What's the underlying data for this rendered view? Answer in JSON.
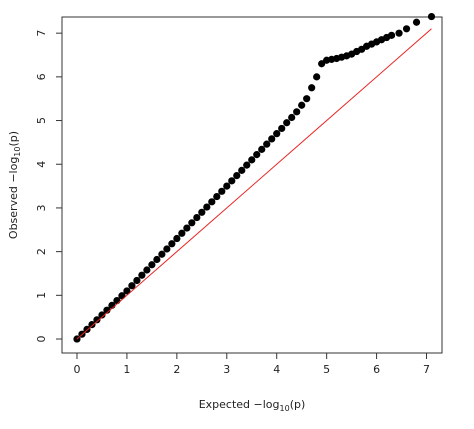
{
  "chart_data": {
    "type": "scatter",
    "xlabel": {
      "text": "Expected  −log",
      "sub": "10",
      "tail": "(p)"
    },
    "ylabel": {
      "text": "Observed  −log",
      "sub": "10",
      "tail": "(p)"
    },
    "xlim": [
      -0.3,
      7.31
    ],
    "ylim": [
      -0.32,
      7.37
    ],
    "xticks": [
      0,
      1,
      2,
      3,
      4,
      5,
      6,
      7
    ],
    "yticks": [
      0,
      1,
      2,
      3,
      4,
      5,
      6,
      7
    ],
    "series": [
      {
        "color": "#000000",
        "x": [
          0,
          0.1,
          0.2,
          0.3,
          0.4,
          0.5,
          0.6,
          0.7,
          0.8,
          0.9,
          1.0,
          1.1,
          1.2,
          1.3,
          1.4,
          1.5,
          1.6,
          1.7,
          1.8,
          1.9,
          2.0,
          2.1,
          2.2,
          2.3,
          2.4,
          2.5,
          2.6,
          2.7,
          2.8,
          2.9,
          3.0,
          3.1,
          3.2,
          3.3,
          3.4,
          3.5,
          3.6,
          3.7,
          3.8,
          3.9,
          4.0,
          4.1,
          4.2,
          4.3,
          4.4,
          4.5,
          4.6,
          4.7,
          4.8,
          4.9,
          5.0,
          5.1,
          5.2,
          5.3,
          5.4,
          5.5,
          5.6,
          5.7,
          5.8,
          5.9,
          6.0,
          6.1,
          6.2,
          6.3,
          6.45,
          6.6,
          6.8,
          7.1
        ],
        "values": [
          0,
          0.11,
          0.22,
          0.33,
          0.44,
          0.55,
          0.66,
          0.77,
          0.88,
          0.99,
          1.1,
          1.22,
          1.34,
          1.46,
          1.58,
          1.7,
          1.82,
          1.94,
          2.06,
          2.18,
          2.3,
          2.42,
          2.54,
          2.66,
          2.78,
          2.9,
          3.02,
          3.14,
          3.26,
          3.38,
          3.5,
          3.62,
          3.74,
          3.86,
          3.98,
          4.1,
          4.22,
          4.34,
          4.46,
          4.58,
          4.7,
          4.82,
          4.95,
          5.07,
          5.2,
          5.35,
          5.5,
          5.75,
          6.0,
          6.3,
          6.38,
          6.4,
          6.42,
          6.45,
          6.48,
          6.52,
          6.58,
          6.63,
          6.7,
          6.75,
          6.8,
          6.85,
          6.9,
          6.95,
          7.0,
          7.1,
          7.25,
          7.38
        ]
      }
    ],
    "reference_line": {
      "color": "#e8211e",
      "x": [
        0,
        7.1
      ],
      "values": [
        0,
        7.1
      ]
    }
  }
}
